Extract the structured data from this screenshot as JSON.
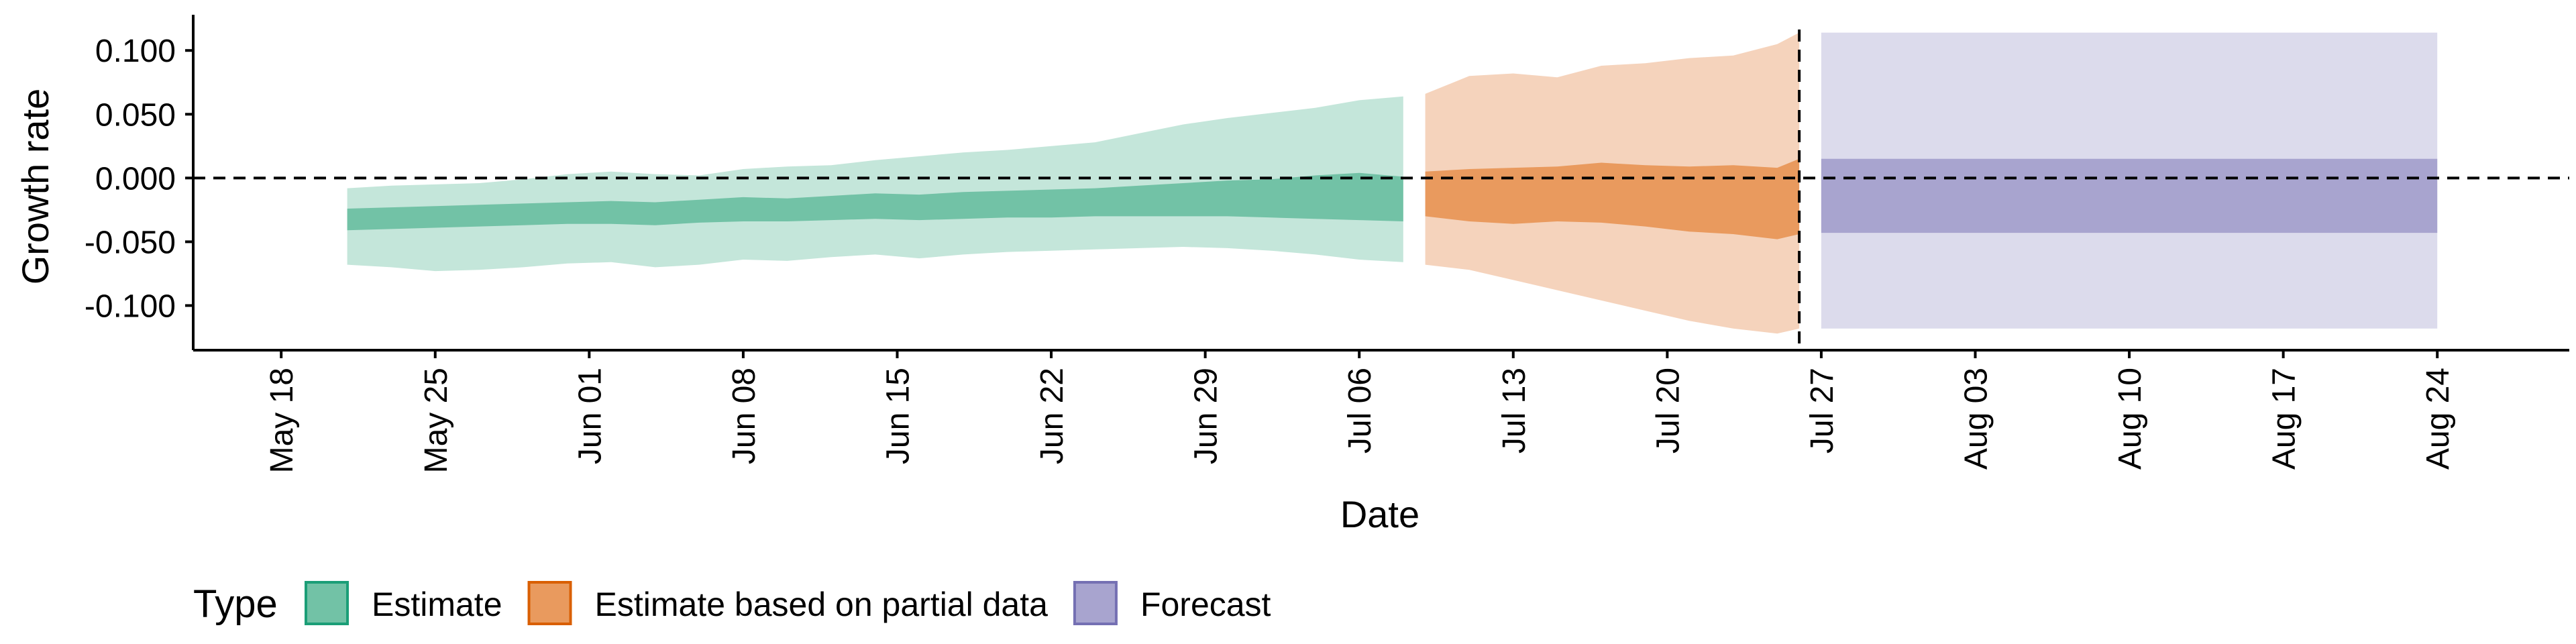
{
  "chart_data": {
    "type": "area",
    "title": "",
    "xlabel": "Date",
    "ylabel": "Growth rate",
    "x_range": [
      "2020-05-14",
      "2020-08-30"
    ],
    "ylim": [
      -0.135,
      0.128
    ],
    "x_ticks": [
      "2020-05-18",
      "2020-05-25",
      "2020-06-01",
      "2020-06-08",
      "2020-06-15",
      "2020-06-22",
      "2020-06-29",
      "2020-07-06",
      "2020-07-13",
      "2020-07-20",
      "2020-07-27",
      "2020-08-03",
      "2020-08-10",
      "2020-08-17",
      "2020-08-24"
    ],
    "x_tick_labels": [
      "May 18",
      "May 25",
      "Jun 01",
      "Jun 08",
      "Jun 15",
      "Jun 22",
      "Jun 29",
      "Jul 06",
      "Jul 13",
      "Jul 20",
      "Jul 27",
      "Aug 03",
      "Aug 10",
      "Aug 17",
      "Aug 24"
    ],
    "y_ticks": [
      0.1,
      0.05,
      0.0,
      -0.05,
      -0.1
    ],
    "y_tick_labels": [
      "0.100",
      "0.050",
      "0.000",
      "-0.050",
      "-0.100"
    ],
    "hline": 0.0,
    "vline": "2020-07-26",
    "legend": {
      "title": "Type",
      "position": "bottom-left",
      "entries": [
        {
          "label": "Estimate",
          "fill": "#72c2a6",
          "stroke": "#1b9e77"
        },
        {
          "label": "Estimate based on partial data",
          "fill": "#e99a5e",
          "stroke": "#d95f02"
        },
        {
          "label": "Forecast",
          "fill": "#a8a4cf",
          "stroke": "#7570b3"
        }
      ]
    },
    "grid": false,
    "series": [
      {
        "name": "Estimate",
        "color": "#1b9e77",
        "light_fill": "#c4e6da",
        "dark_fill": "#72c2a6",
        "x": [
          "2020-05-21",
          "2020-05-23",
          "2020-05-25",
          "2020-05-27",
          "2020-05-29",
          "2020-05-31",
          "2020-06-02",
          "2020-06-04",
          "2020-06-06",
          "2020-06-08",
          "2020-06-10",
          "2020-06-12",
          "2020-06-14",
          "2020-06-16",
          "2020-06-18",
          "2020-06-20",
          "2020-06-22",
          "2020-06-24",
          "2020-06-26",
          "2020-06-28",
          "2020-06-30",
          "2020-07-02",
          "2020-07-04",
          "2020-07-06",
          "2020-07-08"
        ],
        "upper_90": [
          -0.008,
          -0.006,
          -0.005,
          -0.004,
          -0.001,
          0.003,
          0.005,
          0.003,
          0.002,
          0.007,
          0.009,
          0.01,
          0.014,
          0.017,
          0.02,
          0.022,
          0.025,
          0.028,
          0.035,
          0.042,
          0.047,
          0.051,
          0.055,
          0.061,
          0.064
        ],
        "upper_50": [
          -0.024,
          -0.023,
          -0.022,
          -0.021,
          -0.02,
          -0.019,
          -0.018,
          -0.019,
          -0.017,
          -0.015,
          -0.016,
          -0.014,
          -0.012,
          -0.013,
          -0.011,
          -0.01,
          -0.009,
          -0.008,
          -0.006,
          -0.004,
          -0.002,
          -0.001,
          0.002,
          0.004,
          0.001
        ],
        "lower_50": [
          -0.041,
          -0.04,
          -0.039,
          -0.038,
          -0.037,
          -0.036,
          -0.036,
          -0.037,
          -0.035,
          -0.034,
          -0.034,
          -0.033,
          -0.032,
          -0.033,
          -0.032,
          -0.031,
          -0.031,
          -0.03,
          -0.03,
          -0.03,
          -0.03,
          -0.031,
          -0.032,
          -0.033,
          -0.034
        ],
        "lower_90": [
          -0.068,
          -0.07,
          -0.073,
          -0.072,
          -0.07,
          -0.067,
          -0.066,
          -0.07,
          -0.068,
          -0.064,
          -0.065,
          -0.062,
          -0.06,
          -0.063,
          -0.06,
          -0.058,
          -0.057,
          -0.056,
          -0.055,
          -0.054,
          -0.055,
          -0.057,
          -0.06,
          -0.064,
          -0.066
        ]
      },
      {
        "name": "Estimate based on partial data",
        "color": "#d95f02",
        "light_fill": "#f5d3bc",
        "dark_fill": "#e99a5e",
        "x": [
          "2020-07-09",
          "2020-07-11",
          "2020-07-13",
          "2020-07-15",
          "2020-07-17",
          "2020-07-19",
          "2020-07-21",
          "2020-07-23",
          "2020-07-25",
          "2020-07-26"
        ],
        "upper_90": [
          0.066,
          0.08,
          0.082,
          0.079,
          0.088,
          0.09,
          0.094,
          0.096,
          0.105,
          0.114
        ],
        "upper_50": [
          0.005,
          0.007,
          0.008,
          0.009,
          0.012,
          0.01,
          0.009,
          0.01,
          0.008,
          0.015
        ],
        "lower_50": [
          -0.03,
          -0.034,
          -0.036,
          -0.034,
          -0.035,
          -0.038,
          -0.042,
          -0.044,
          -0.048,
          -0.044
        ],
        "lower_90": [
          -0.068,
          -0.072,
          -0.08,
          -0.088,
          -0.096,
          -0.104,
          -0.112,
          -0.118,
          -0.122,
          -0.118
        ]
      },
      {
        "name": "Forecast",
        "color": "#7570b3",
        "light_fill": "#dcdbec",
        "dark_fill": "#a8a4cf",
        "x": [
          "2020-07-27",
          "2020-08-24"
        ],
        "upper_90": [
          0.114,
          0.114
        ],
        "upper_50": [
          0.015,
          0.015
        ],
        "lower_50": [
          -0.043,
          -0.043
        ],
        "lower_90": [
          -0.118,
          -0.118
        ]
      }
    ]
  }
}
